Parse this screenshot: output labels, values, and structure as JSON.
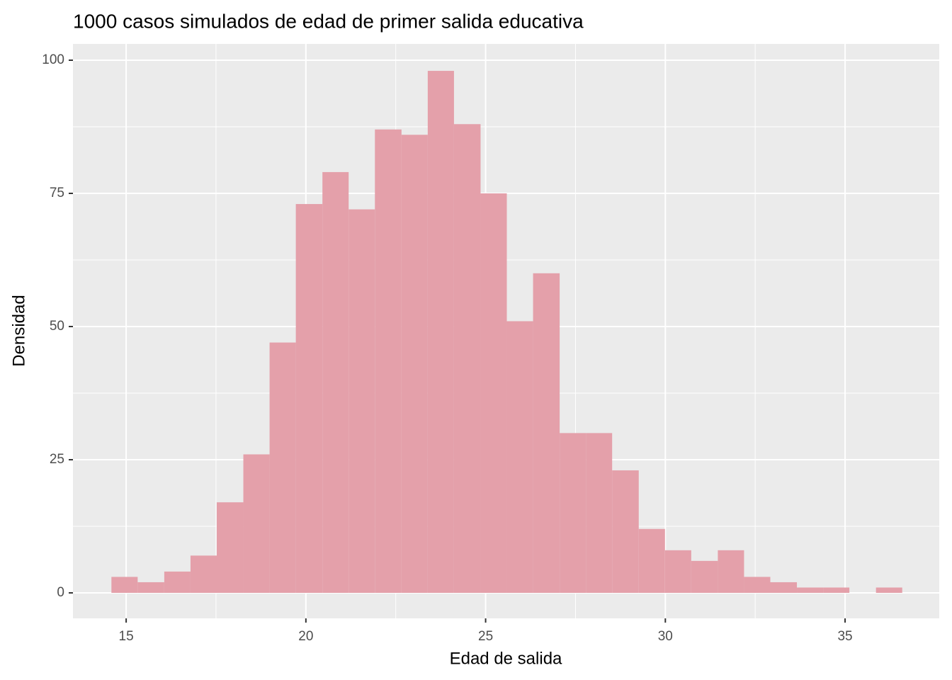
{
  "chart_data": {
    "type": "histogram",
    "title": "1000 casos simulados de edad de primer salida educativa",
    "x_label": "Edad de salida",
    "y_label": "Densidad",
    "bins": [
      14.59,
      15.32,
      16.06,
      16.79,
      17.52,
      18.26,
      18.99,
      19.72,
      20.46,
      21.19,
      21.92,
      22.66,
      23.39,
      24.12,
      24.86,
      25.59,
      26.32,
      27.06,
      27.79,
      28.52,
      29.26,
      29.99,
      30.72,
      31.46,
      32.19,
      32.92,
      33.66,
      34.39,
      35.12,
      35.86,
      36.59
    ],
    "values": [
      3,
      2,
      4,
      7,
      17,
      26,
      47,
      73,
      79,
      72,
      87,
      86,
      98,
      88,
      75,
      51,
      60,
      30,
      30,
      23,
      12,
      8,
      6,
      8,
      3,
      2,
      1,
      1,
      0,
      1
    ],
    "color": "#e4a0aa",
    "xlim": [
      13.52,
      37.62
    ],
    "ylim": [
      -4.79,
      103.06
    ],
    "xticks": [
      15,
      20,
      25,
      30,
      35
    ],
    "yticks": [
      0,
      25,
      50,
      75,
      100
    ],
    "grid": true
  }
}
